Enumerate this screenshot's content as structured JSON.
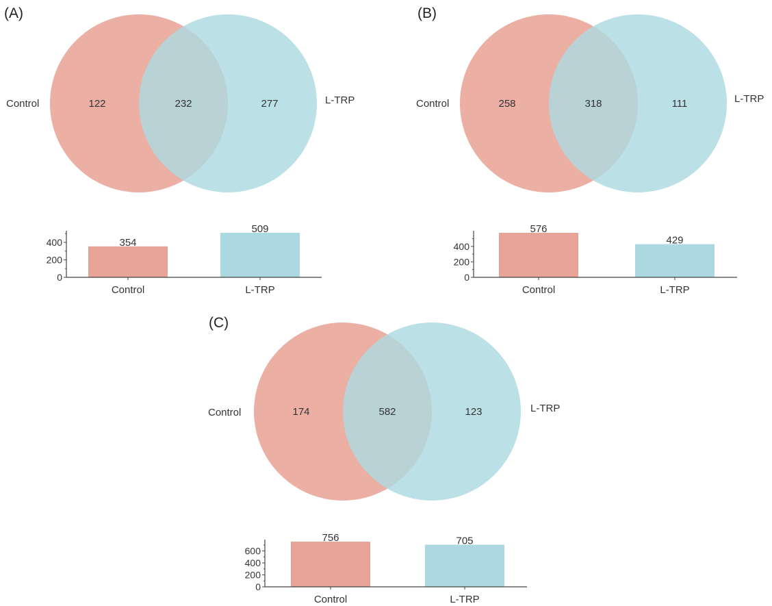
{
  "colors": {
    "control": "#E8A496",
    "ltrp": "#ACD9E1",
    "axis": "#444444"
  },
  "chart_data": [
    {
      "type": "venn",
      "panel": "(A)",
      "sets": [
        "Control",
        "L-TRP"
      ],
      "control_only": "122",
      "intersection": "232",
      "ltrp_only": "277",
      "bar": {
        "type": "bar",
        "categories": [
          "Control",
          "L-TRP"
        ],
        "values": [
          354,
          509
        ],
        "ylim": [
          0,
          509
        ],
        "yticks": [
          0,
          200,
          400
        ]
      }
    },
    {
      "type": "venn",
      "panel": "(B)",
      "sets": [
        "Control",
        "L-TRP"
      ],
      "control_only": "258",
      "intersection": "318",
      "ltrp_only": "111",
      "bar": {
        "type": "bar",
        "categories": [
          "Control",
          "L-TRP"
        ],
        "values": [
          576,
          429
        ],
        "ylim": [
          0,
          576
        ],
        "yticks": [
          0,
          200,
          400
        ]
      }
    },
    {
      "type": "venn",
      "panel": "(C)",
      "sets": [
        "Control",
        "L-TRP"
      ],
      "control_only": "174",
      "intersection": "582",
      "ltrp_only": "123",
      "bar": {
        "type": "bar",
        "categories": [
          "Control",
          "L-TRP"
        ],
        "values": [
          756,
          705
        ],
        "ylim": [
          0,
          756
        ],
        "yticks": [
          0,
          200,
          400,
          600
        ]
      }
    }
  ]
}
